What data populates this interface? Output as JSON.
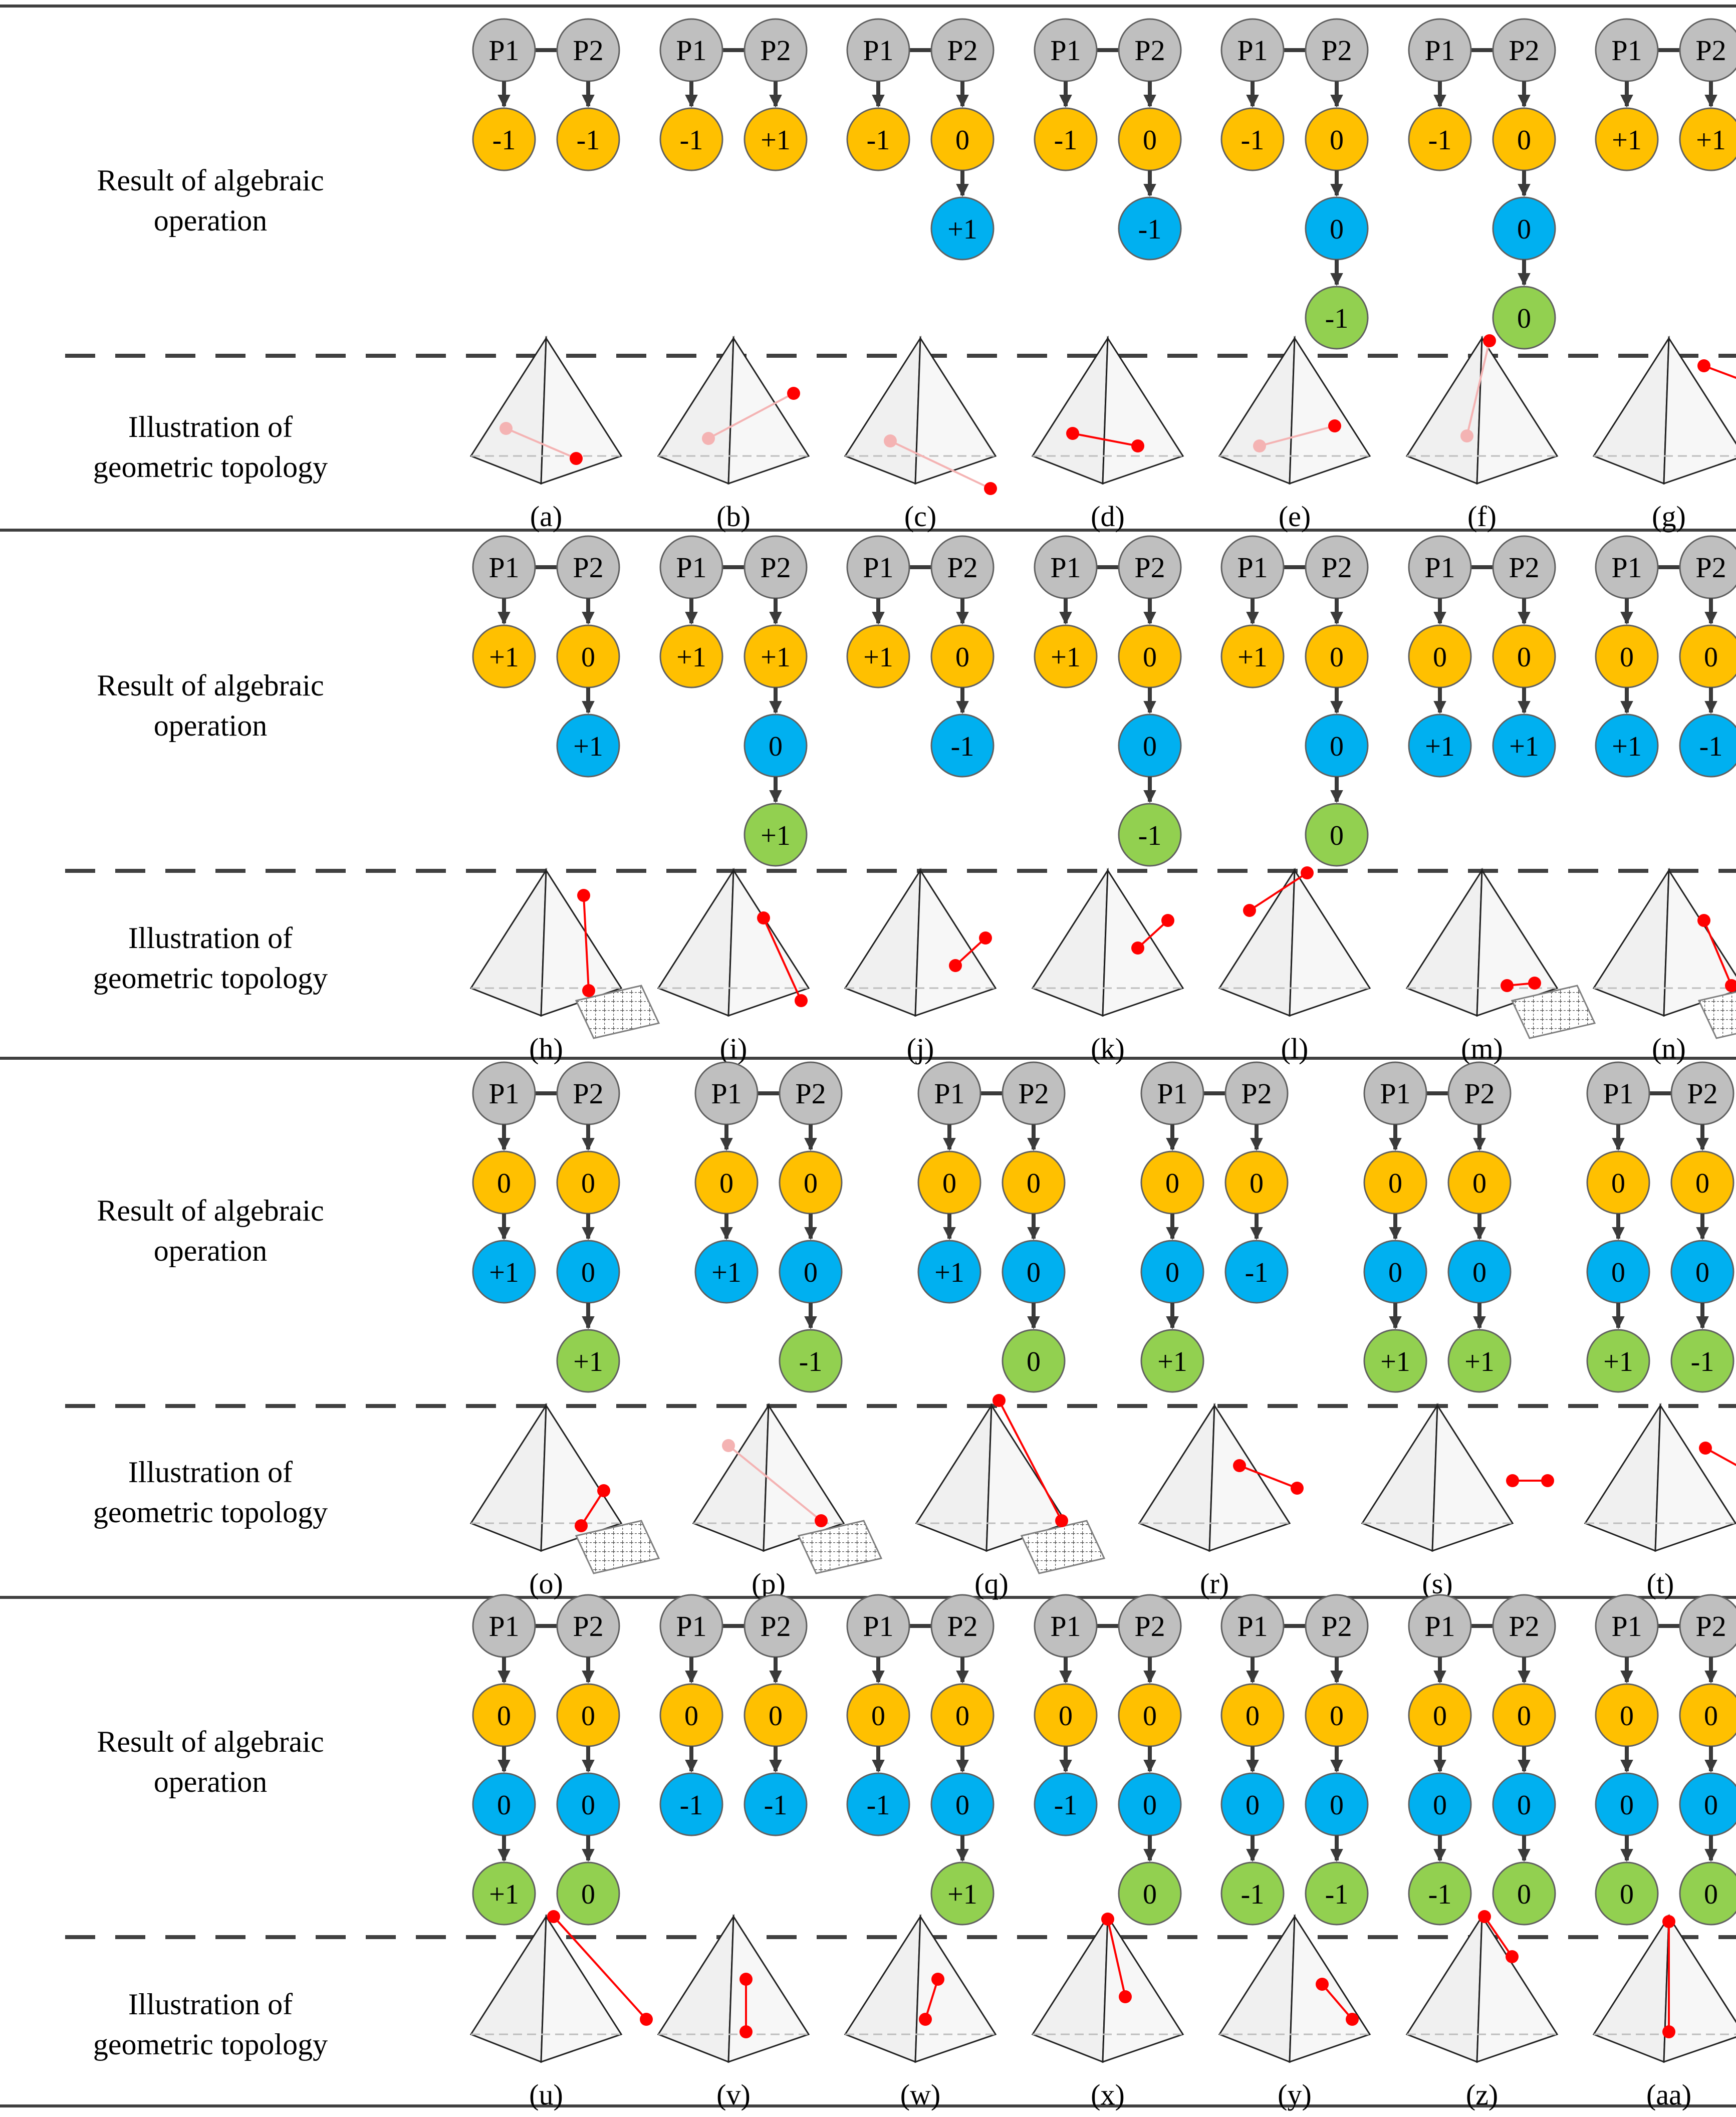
{
  "row_labels": {
    "algebraic": [
      "Result of algebraic",
      "operation"
    ],
    "geometric": [
      "Illustration of",
      "geometric topology"
    ]
  },
  "colors": {
    "point": "#bfbfbf",
    "level1": "#ffc000",
    "level2": "#00b0f0",
    "level3": "#92d050",
    "contact": "#ff0000",
    "contact_hidden": "#f4b3b3",
    "rule": "#404040"
  },
  "point_labels": [
    "P1",
    "P2"
  ],
  "sections": [
    {
      "cases": [
        {
          "caption": "(a)",
          "p1": [
            "-1"
          ],
          "p2": [
            "-1"
          ]
        },
        {
          "caption": "(b)",
          "p1": [
            "-1"
          ],
          "p2": [
            "+1"
          ]
        },
        {
          "caption": "(c)",
          "p1": [
            "-1"
          ],
          "p2": [
            "0",
            "+1"
          ]
        },
        {
          "caption": "(d)",
          "p1": [
            "-1"
          ],
          "p2": [
            "0",
            "-1"
          ]
        },
        {
          "caption": "(e)",
          "p1": [
            "-1"
          ],
          "p2": [
            "0",
            "0",
            "-1"
          ]
        },
        {
          "caption": "(f)",
          "p1": [
            "-1"
          ],
          "p2": [
            "0",
            "0",
            "0"
          ]
        },
        {
          "caption": "(g)",
          "p1": [
            "+1"
          ],
          "p2": [
            "+1"
          ]
        }
      ]
    },
    {
      "cases": [
        {
          "caption": "(h)",
          "p1": [
            "+1"
          ],
          "p2": [
            "0",
            "+1"
          ]
        },
        {
          "caption": "(i)",
          "p1": [
            "+1"
          ],
          "p2": [
            "+1",
            "0",
            "+1"
          ]
        },
        {
          "caption": "(j)",
          "p1": [
            "+1"
          ],
          "p2": [
            "0",
            "-1"
          ]
        },
        {
          "caption": "(k)",
          "p1": [
            "+1"
          ],
          "p2": [
            "0",
            "0",
            "-1"
          ]
        },
        {
          "caption": "(l)",
          "p1": [
            "+1"
          ],
          "p2": [
            "0",
            "0",
            "0"
          ]
        },
        {
          "caption": "(m)",
          "p1": [
            "0",
            "+1"
          ],
          "p2": [
            "0",
            "+1"
          ]
        },
        {
          "caption": "(n)",
          "p1": [
            "0",
            "+1"
          ],
          "p2": [
            "0",
            "-1"
          ]
        }
      ]
    },
    {
      "cases": [
        {
          "caption": "(o)",
          "p1": [
            "0",
            "+1"
          ],
          "p2": [
            "0",
            "0",
            "+1"
          ]
        },
        {
          "caption": "(p)",
          "p1": [
            "0",
            "+1"
          ],
          "p2": [
            "0",
            "0",
            "-1"
          ]
        },
        {
          "caption": "(q)",
          "p1": [
            "0",
            "+1"
          ],
          "p2": [
            "0",
            "0",
            "0"
          ]
        },
        {
          "caption": "(r)",
          "p1": [
            "0",
            "0",
            "+1"
          ],
          "p2": [
            "0",
            "-1"
          ]
        },
        {
          "caption": "(s)",
          "p1": [
            "0",
            "0",
            "+1"
          ],
          "p2": [
            "0",
            "0",
            "+1"
          ]
        },
        {
          "caption": "(t)",
          "p1": [
            "0",
            "0",
            "+1"
          ],
          "p2": [
            "0",
            "0",
            "-1"
          ]
        }
      ]
    },
    {
      "cases": [
        {
          "caption": "(u)",
          "p1": [
            "0",
            "0",
            "+1"
          ],
          "p2": [
            "0",
            "0",
            "0"
          ]
        },
        {
          "caption": "(v)",
          "p1": [
            "0",
            "-1"
          ],
          "p2": [
            "0",
            "-1"
          ]
        },
        {
          "caption": "(w)",
          "p1": [
            "0",
            "-1"
          ],
          "p2": [
            "0",
            "0",
            "+1"
          ]
        },
        {
          "caption": "(x)",
          "p1": [
            "0",
            "-1"
          ],
          "p2": [
            "0",
            "0",
            "0"
          ]
        },
        {
          "caption": "(y)",
          "p1": [
            "0",
            "0",
            "-1"
          ],
          "p2": [
            "0",
            "0",
            "-1"
          ]
        },
        {
          "caption": "(z)",
          "p1": [
            "0",
            "0",
            "-1"
          ],
          "p2": [
            "0",
            "0",
            "0"
          ]
        },
        {
          "caption": "(aa)",
          "p1": [
            "0",
            "0",
            "0"
          ],
          "p2": [
            "0",
            "0",
            "0"
          ]
        }
      ]
    }
  ]
}
